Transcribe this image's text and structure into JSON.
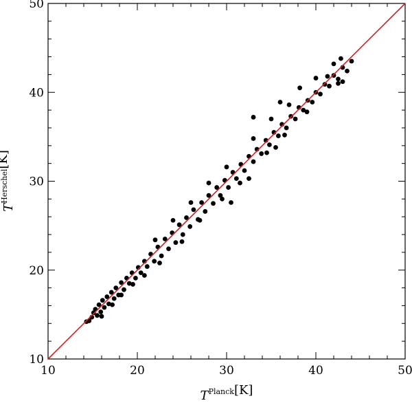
{
  "chart_data": {
    "type": "scatter",
    "xlabel": {
      "symbol": "T",
      "superscript": "Planck",
      "unit": "[K]"
    },
    "ylabel": {
      "symbol": "T",
      "superscript": "Herschel",
      "unit": "[K]"
    },
    "xlim": [
      10,
      50
    ],
    "ylim": [
      10,
      50
    ],
    "x_ticks": [
      "10",
      "20",
      "30",
      "40",
      "50"
    ],
    "y_ticks": [
      "10",
      "20",
      "30",
      "40",
      "50"
    ],
    "minor_tick_step": 2,
    "grid": false,
    "legend": "none",
    "points_color": "#000000",
    "reference_line": {
      "type": "one-to-one",
      "from": [
        10,
        10
      ],
      "to": [
        50,
        50
      ],
      "color": "#d42020"
    },
    "series": [
      {
        "points": [
          [
            14.3,
            14.2
          ],
          [
            14.6,
            14.3
          ],
          [
            14.9,
            14.7
          ],
          [
            15.1,
            15.2
          ],
          [
            15.3,
            15.6
          ],
          [
            15.5,
            14.9
          ],
          [
            15.7,
            16.1
          ],
          [
            15.9,
            15.3
          ],
          [
            16.1,
            16.6
          ],
          [
            16.3,
            15.8
          ],
          [
            16.6,
            17.0
          ],
          [
            16.8,
            16.2
          ],
          [
            17.1,
            17.5
          ],
          [
            17.4,
            16.8
          ],
          [
            17.6,
            18.0
          ],
          [
            17.9,
            17.2
          ],
          [
            18.2,
            18.6
          ],
          [
            18.5,
            17.8
          ],
          [
            18.8,
            19.1
          ],
          [
            19.1,
            18.5
          ],
          [
            19.4,
            19.7
          ],
          [
            19.8,
            19.1
          ],
          [
            20.1,
            20.3
          ],
          [
            20.4,
            19.7
          ],
          [
            20.8,
            21.0
          ],
          [
            21.1,
            20.4
          ],
          [
            21.5,
            21.8
          ],
          [
            21.9,
            21.0
          ],
          [
            22.3,
            22.6
          ],
          [
            22.7,
            21.6
          ],
          [
            23.1,
            23.5
          ],
          [
            23.5,
            22.4
          ],
          [
            23.9,
            24.2
          ],
          [
            24.3,
            23.1
          ],
          [
            24.7,
            25.1
          ],
          [
            25.1,
            24.0
          ],
          [
            25.5,
            25.9
          ],
          [
            25.9,
            24.9
          ],
          [
            26.3,
            26.8
          ],
          [
            26.8,
            25.7
          ],
          [
            27.2,
            27.6
          ],
          [
            27.6,
            26.6
          ],
          [
            28.0,
            28.4
          ],
          [
            28.5,
            27.5
          ],
          [
            28.9,
            29.3
          ],
          [
            29.3,
            28.4
          ],
          [
            29.8,
            30.1
          ],
          [
            30.2,
            29.3
          ],
          [
            30.7,
            31.0
          ],
          [
            31.1,
            30.3
          ],
          [
            31.6,
            31.9
          ],
          [
            32.0,
            31.2
          ],
          [
            32.5,
            32.8
          ],
          [
            33.0,
            32.2
          ],
          [
            33.4,
            33.6
          ],
          [
            33.9,
            33.1
          ],
          [
            34.4,
            34.6
          ],
          [
            34.8,
            34.1
          ],
          [
            35.3,
            35.5
          ],
          [
            35.8,
            35.1
          ],
          [
            36.2,
            36.4
          ],
          [
            36.7,
            36.0
          ],
          [
            37.2,
            37.3
          ],
          [
            37.7,
            37.0
          ],
          [
            38.1,
            38.3
          ],
          [
            38.6,
            38.0
          ],
          [
            39.1,
            39.1
          ],
          [
            39.6,
            38.9
          ],
          [
            40.0,
            40.0
          ],
          [
            40.5,
            39.8
          ],
          [
            41.0,
            40.9
          ],
          [
            41.5,
            40.7
          ],
          [
            42.0,
            41.9
          ],
          [
            42.5,
            41.5
          ],
          [
            43.0,
            42.8
          ],
          [
            43.5,
            42.4
          ],
          [
            44.0,
            43.5
          ],
          [
            22.0,
            23.4
          ],
          [
            24.0,
            25.6
          ],
          [
            26.0,
            27.6
          ],
          [
            28.0,
            29.8
          ],
          [
            30.0,
            31.6
          ],
          [
            33.0,
            34.8
          ],
          [
            35.0,
            37.0
          ],
          [
            37.0,
            38.6
          ],
          [
            40.0,
            41.6
          ],
          [
            42.0,
            43.2
          ],
          [
            22.5,
            20.8
          ],
          [
            25.0,
            23.2
          ],
          [
            27.0,
            25.6
          ],
          [
            29.5,
            28.0
          ],
          [
            31.5,
            29.8
          ],
          [
            34.5,
            33.2
          ],
          [
            36.5,
            35.2
          ],
          [
            39.0,
            37.8
          ],
          [
            42.5,
            41.0
          ],
          [
            43.0,
            41.2
          ],
          [
            33.0,
            37.2
          ],
          [
            36.0,
            38.9
          ],
          [
            38.2,
            40.5
          ],
          [
            30.5,
            27.6
          ],
          [
            32.5,
            30.3
          ],
          [
            35.5,
            33.8
          ],
          [
            41.3,
            41.8
          ],
          [
            42.8,
            43.8
          ],
          [
            18.2,
            17.2
          ],
          [
            19.5,
            18.4
          ],
          [
            17.2,
            16.1
          ],
          [
            16.0,
            14.8
          ],
          [
            20.8,
            19.4
          ]
        ]
      }
    ]
  }
}
